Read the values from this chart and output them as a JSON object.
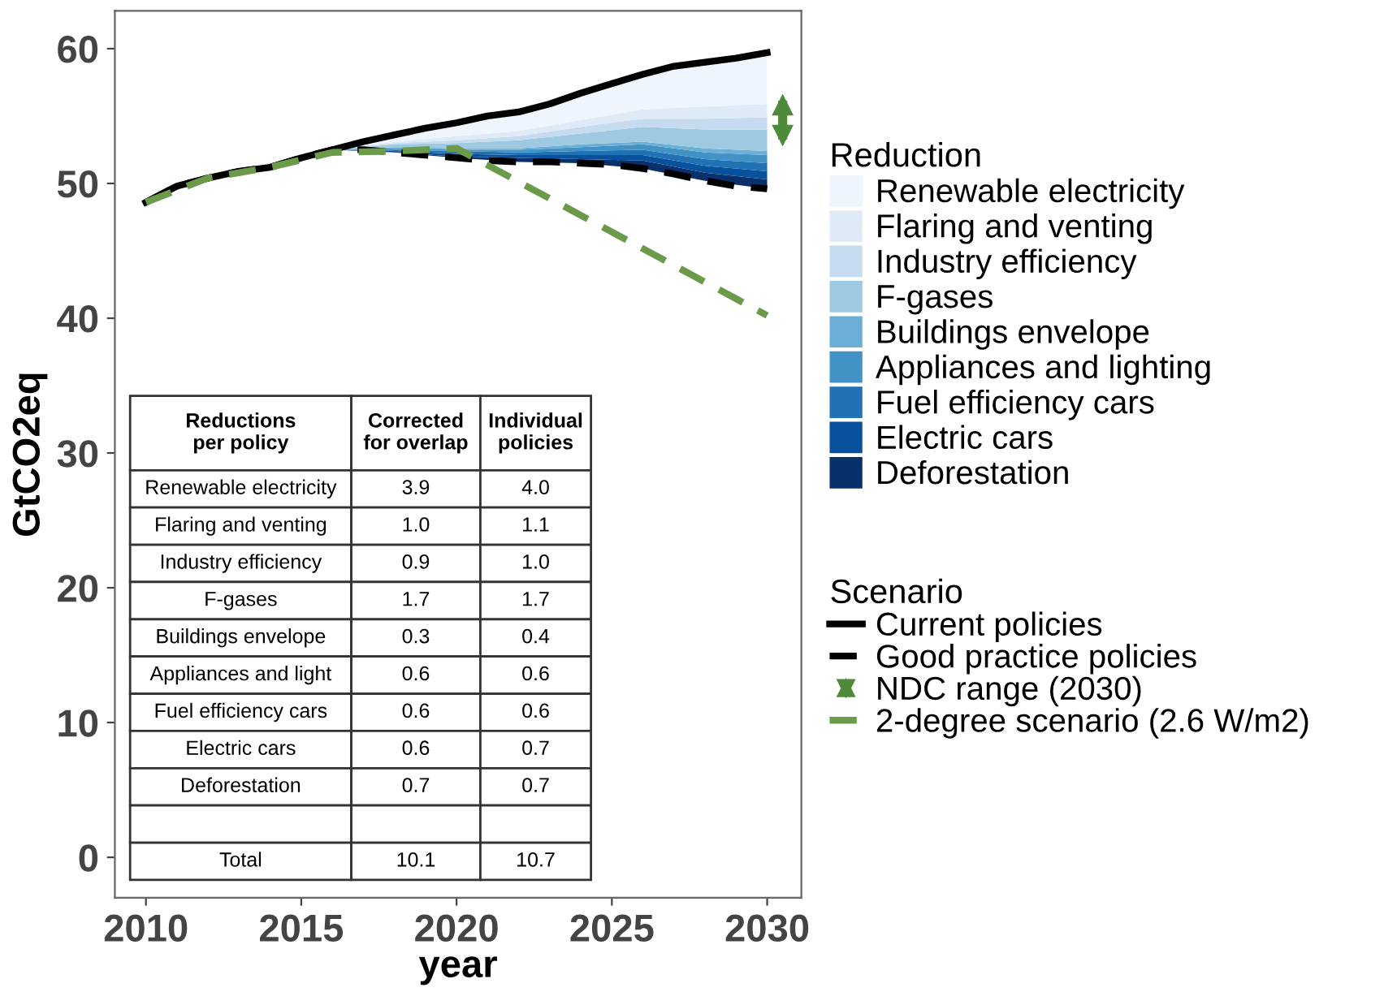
{
  "chart_data": [
    {
      "type": "line",
      "xlabel": "year",
      "ylabel": "GtCO2eq",
      "legend_title": [
        "Reduction",
        "Scenario"
      ],
      "legend": "right",
      "grid": false,
      "x": [
        2010,
        2011,
        2012,
        2013,
        2014,
        2015,
        2016,
        2017,
        2018,
        2019,
        2020,
        2021,
        2022,
        2023,
        2024,
        2025,
        2026,
        2027,
        2028,
        2029,
        2030
      ],
      "xlim": [
        2009.0,
        2031.1
      ],
      "xticks": [
        2010,
        2015,
        2020,
        2025,
        2030
      ],
      "ylim": [
        -3,
        62.8
      ],
      "yticks": [
        0,
        10,
        20,
        30,
        40,
        50,
        60
      ],
      "series": [
        {
          "name": "Current policies",
          "type": "line",
          "color": "#000000",
          "line_style": "solid",
          "values": [
            48.6,
            49.8,
            50.4,
            50.9,
            51.2,
            51.9,
            52.5,
            53.1,
            53.6,
            54.1,
            54.5,
            55.0,
            55.3,
            55.9,
            56.7,
            57.4,
            58.1,
            58.7,
            59.0,
            59.3,
            59.7
          ]
        },
        {
          "name": "Good practice policies",
          "type": "line",
          "color": "#000000",
          "line_style": "dashed",
          "values": [
            48.6,
            49.8,
            50.4,
            50.9,
            51.2,
            51.9,
            52.5,
            52.5,
            52.3,
            52.1,
            51.9,
            51.7,
            51.6,
            51.6,
            51.5,
            51.4,
            51.1,
            50.7,
            50.2,
            49.8,
            49.6
          ]
        },
        {
          "name": "Deforestation",
          "type": "area",
          "color": "#08306b",
          "x": [
            2016,
            2018,
            2020,
            2022,
            2024,
            2026,
            2028,
            2030
          ],
          "values": [
            52.5,
            52.3,
            52.0,
            51.9,
            51.8,
            51.7,
            50.8,
            50.3
          ]
        },
        {
          "name": "Electric cars",
          "type": "area",
          "color": "#08519c",
          "x": [
            2016,
            2018,
            2020,
            2022,
            2024,
            2026,
            2028,
            2030
          ],
          "values": [
            52.5,
            52.4,
            52.2,
            52.1,
            52.1,
            52.1,
            51.3,
            50.9
          ]
        },
        {
          "name": "Fuel efficiency cars",
          "type": "area",
          "color": "#2171b5",
          "x": [
            2016,
            2018,
            2020,
            2022,
            2024,
            2026,
            2028,
            2030
          ],
          "values": [
            52.5,
            52.5,
            52.4,
            52.3,
            52.4,
            52.5,
            51.8,
            51.5
          ]
        },
        {
          "name": "Appliances and lighting",
          "type": "area",
          "color": "#4292c6",
          "x": [
            2016,
            2018,
            2020,
            2022,
            2024,
            2026,
            2028,
            2030
          ],
          "values": [
            52.5,
            52.6,
            52.5,
            52.5,
            52.7,
            52.9,
            52.3,
            52.1
          ]
        },
        {
          "name": "Buildings envelope",
          "type": "area",
          "color": "#6baed6",
          "x": [
            2016,
            2018,
            2020,
            2022,
            2024,
            2026,
            2028,
            2030
          ],
          "values": [
            52.5,
            52.7,
            52.6,
            52.6,
            52.9,
            53.1,
            52.6,
            52.4
          ]
        },
        {
          "name": "F-gases",
          "type": "area",
          "color": "#9ecae1",
          "x": [
            2016,
            2018,
            2020,
            2022,
            2024,
            2026,
            2028,
            2030
          ],
          "values": [
            52.5,
            52.9,
            53.0,
            53.2,
            53.7,
            54.2,
            54.0,
            54.0
          ]
        },
        {
          "name": "Industry efficiency",
          "type": "area",
          "color": "#c6dbef",
          "x": [
            2016,
            2018,
            2020,
            2022,
            2024,
            2026,
            2028,
            2030
          ],
          "values": [
            52.5,
            53.0,
            53.2,
            53.5,
            54.2,
            54.8,
            54.8,
            54.9
          ]
        },
        {
          "name": "Flaring and venting",
          "type": "area",
          "color": "#deebf7",
          "x": [
            2016,
            2018,
            2020,
            2022,
            2024,
            2026,
            2028,
            2030
          ],
          "values": [
            52.5,
            53.1,
            53.5,
            53.9,
            54.7,
            55.5,
            55.7,
            55.9
          ]
        },
        {
          "name": "Renewable electricity",
          "type": "area",
          "color": "#eef5fc",
          "x": [
            2016,
            2018,
            2020,
            2022,
            2024,
            2026,
            2028,
            2030
          ],
          "values": [
            52.5,
            53.6,
            54.5,
            55.3,
            56.7,
            58.1,
            59.0,
            59.7
          ]
        },
        {
          "name": "NDC range (2030)",
          "type": "line",
          "marker": "triangle",
          "color": "#4f8a3a",
          "x": [
            2030.5,
            2030.5
          ],
          "values": [
            53.6,
            55.8
          ]
        },
        {
          "name": "2-degree scenario (2.6 W/m2)",
          "type": "line",
          "color": "#6a9a4a",
          "line_style": "dashed",
          "x": [
            2010,
            2012,
            2014,
            2016,
            2018,
            2020,
            2030
          ],
          "values": [
            48.6,
            50.4,
            51.2,
            52.3,
            52.4,
            52.6,
            40.2
          ]
        }
      ]
    },
    {
      "type": "other",
      "annotations": [
        "Reductions\nper policy"
      ],
      "categories": [
        "Renewable electricity",
        "Flaring and venting",
        "Industry efficiency",
        "F-gases",
        "Buildings envelope",
        "Appliances and light",
        "Fuel efficiency cars",
        "Electric cars",
        "Deforestation",
        null,
        "Total"
      ],
      "series": [
        {
          "name": "Corrected\nfor overlap",
          "values": [
            3.9,
            1.0,
            0.9,
            1.7,
            0.3,
            0.6,
            0.6,
            0.6,
            0.7,
            null,
            10.1
          ],
          "value_labels": [
            "3.9",
            "1.0",
            "0.9",
            "1.7",
            "0.3",
            "0.6",
            "0.6",
            "0.6",
            "0.7",
            null,
            "10.1"
          ]
        },
        {
          "name": "Individual\npolicies",
          "values": [
            4.0,
            1.1,
            1.0,
            1.7,
            0.4,
            0.6,
            0.6,
            0.7,
            0.7,
            null,
            10.7
          ],
          "value_labels": [
            "4.0",
            "1.1",
            "1.0",
            "1.7",
            "0.4",
            "0.6",
            "0.6",
            "0.7",
            "0.7",
            null,
            "10.7"
          ]
        }
      ]
    }
  ]
}
